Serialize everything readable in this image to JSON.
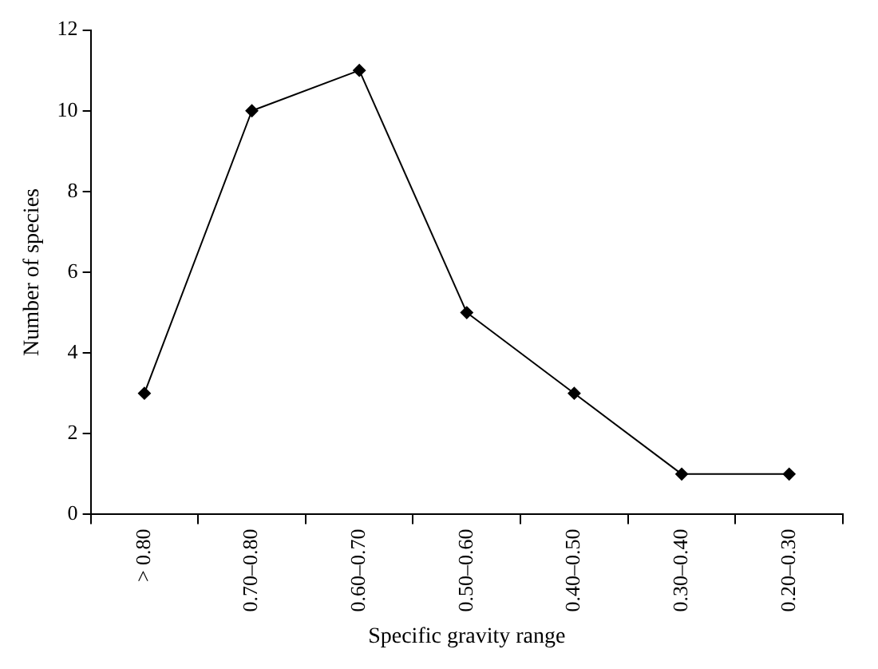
{
  "chart_data": {
    "type": "line",
    "xlabel": "Specific gravity range",
    "ylabel": "Number of species",
    "categories": [
      "> 0.80",
      "0.70–0.80",
      "0.60–0.70",
      "0.50–0.60",
      "0.40–0.50",
      "0.30–0.40",
      "0.20–0.30"
    ],
    "series": [
      {
        "color": "#000000",
        "values": [
          3,
          10,
          11,
          5,
          3,
          1,
          1
        ]
      }
    ],
    "ylim": [
      0,
      12
    ],
    "yticks": [
      0,
      2,
      4,
      6,
      8,
      10,
      12
    ],
    "grid": false,
    "legend": false,
    "marker": "diamond",
    "line_style": "solid"
  }
}
